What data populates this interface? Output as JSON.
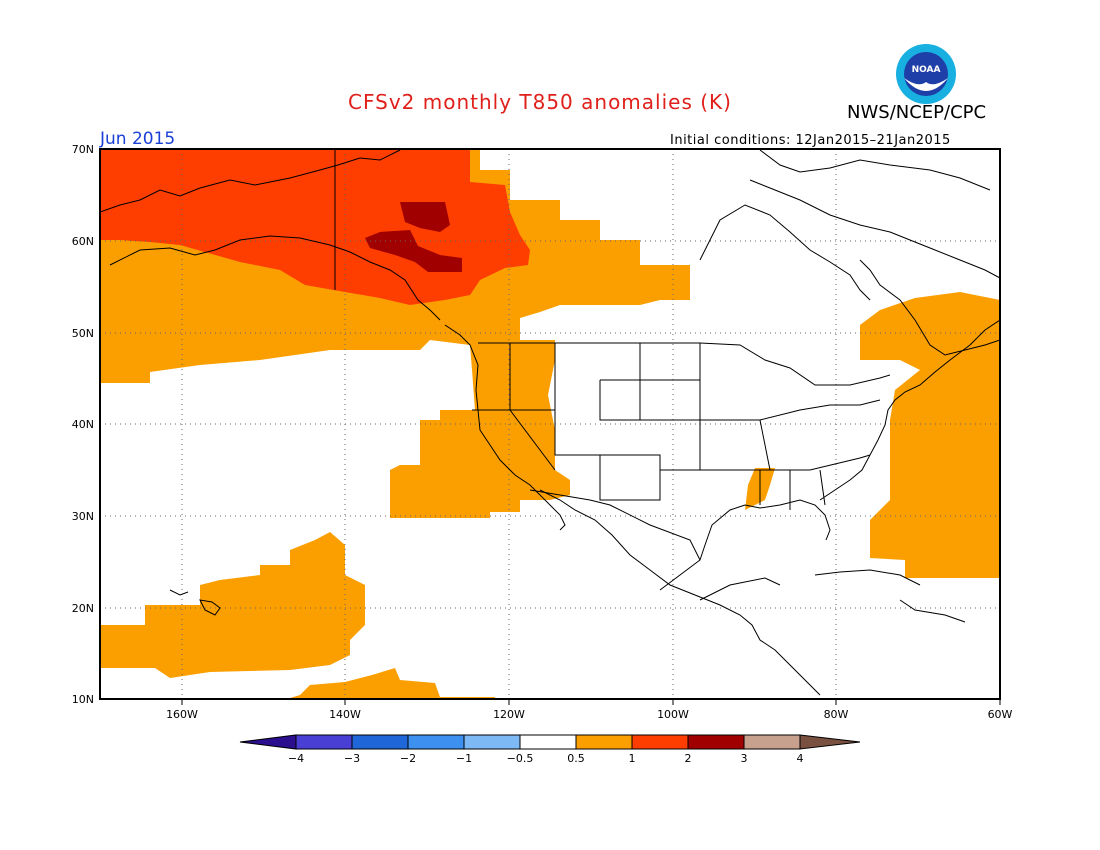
{
  "header": {
    "title": "CFSv2 monthly T850 anomalies (K)",
    "agency": "NWS/NCEP/CPC",
    "logo_text": "NOAA",
    "period": "Jun 2015",
    "initial_conditions": "Initial conditions: 12Jan2015–21Jan2015"
  },
  "axes": {
    "lat_labels": [
      "70N",
      "60N",
      "50N",
      "40N",
      "30N",
      "20N",
      "10N"
    ],
    "lon_labels": [
      "160W",
      "140W",
      "120W",
      "100W",
      "80W",
      "60W"
    ]
  },
  "colorbar": {
    "tick_labels": [
      "−4",
      "−3",
      "−2",
      "−1",
      "−0.5",
      "0.5",
      "1",
      "2",
      "3",
      "4"
    ],
    "colors": [
      "#2b0f8f",
      "#4a3fd4",
      "#1f66d9",
      "#3d8ff0",
      "#7cb9f5",
      "#ffffff",
      "#fb9f00",
      "#fe3d00",
      "#a00000",
      "#c8a08e",
      "#7a5040"
    ]
  },
  "colors": {
    "title": "#e0201a",
    "period": "#1a3fd6",
    "anom_0p5_1": "#fb9f00",
    "anom_1_2": "#fe3d00",
    "anom_2_3": "#a00000"
  }
}
